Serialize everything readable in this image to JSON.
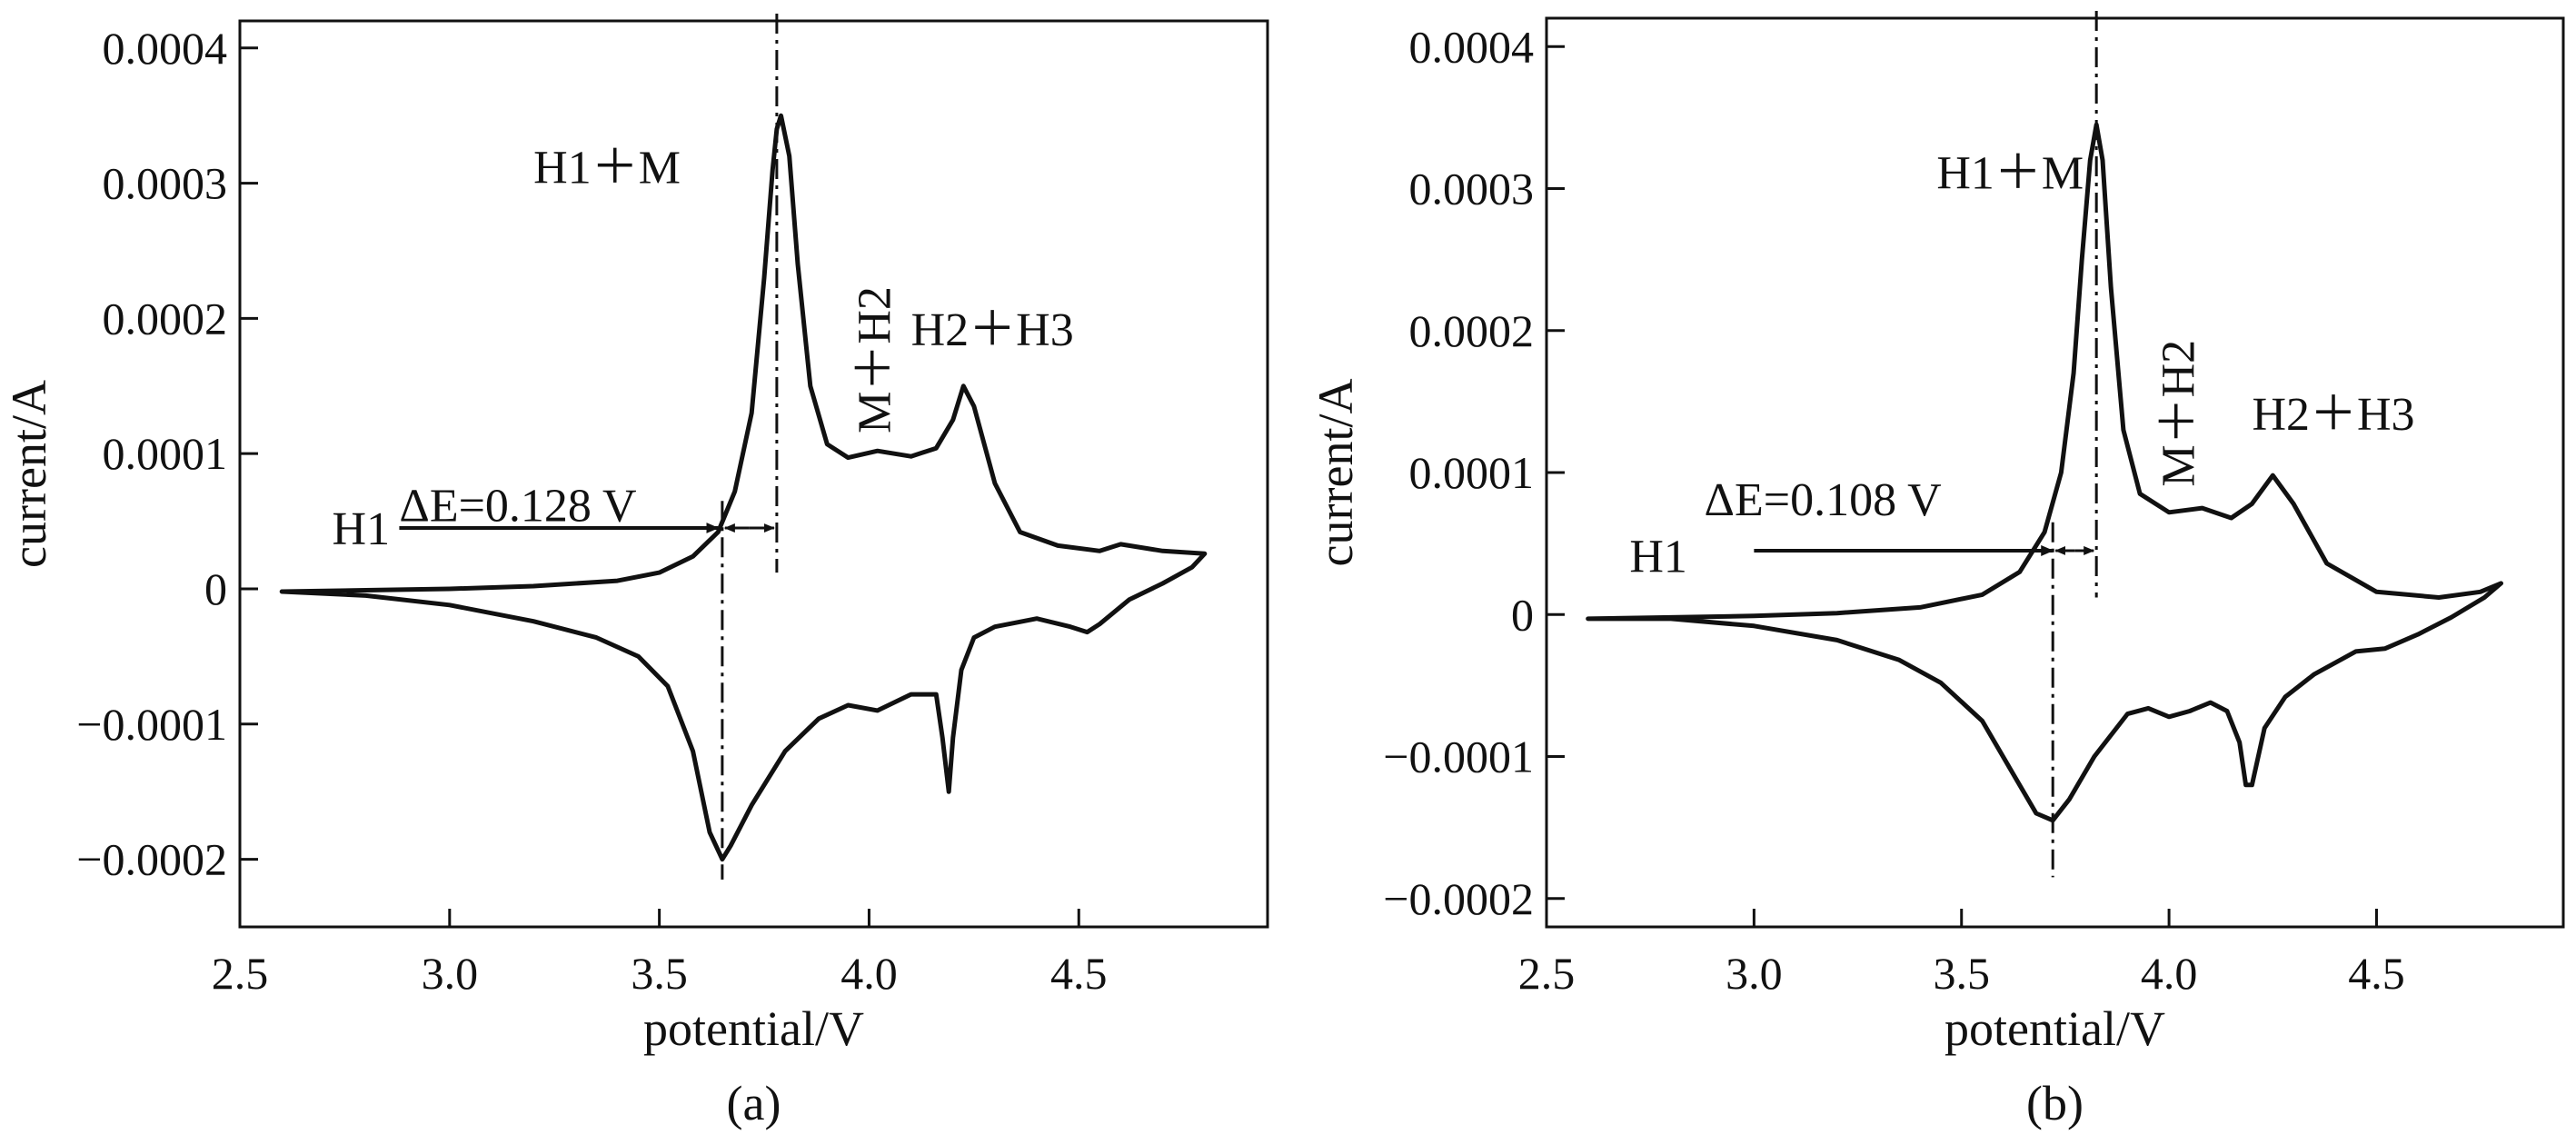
{
  "chart_data": [
    {
      "type": "line",
      "panel_label": "(a)",
      "xlabel": "potential/V",
      "ylabel": "current/A",
      "xlim": [
        2.5,
        4.95
      ],
      "ylim": [
        -0.00025,
        0.00042
      ],
      "x_ticks": [
        {
          "value": 2.5,
          "label": "2.5"
        },
        {
          "value": 3.0,
          "label": "3.0"
        },
        {
          "value": 3.5,
          "label": "3.5"
        },
        {
          "value": 4.0,
          "label": "4.0"
        },
        {
          "value": 4.5,
          "label": "4.5"
        }
      ],
      "y_ticks": [
        {
          "value": 0.0004,
          "label": "0.0004"
        },
        {
          "value": 0.0003,
          "label": "0.0003"
        },
        {
          "value": 0.0002,
          "label": "0.0002"
        },
        {
          "value": 0.0001,
          "label": "0.0001"
        },
        {
          "value": 0,
          "label": "0"
        },
        {
          "value": -0.0001,
          "label": "−0.0001"
        },
        {
          "value": -0.0002,
          "label": "−0.0002"
        }
      ],
      "grid": false,
      "series": [
        {
          "values": [
            [
              2.6,
              -2e-06
            ],
            [
              2.8,
              -1e-06
            ],
            [
              3.0,
              0.0
            ],
            [
              3.2,
              2e-06
            ],
            [
              3.4,
              6e-06
            ],
            [
              3.5,
              1.2e-05
            ],
            [
              3.58,
              2.4e-05
            ],
            [
              3.64,
              4.2e-05
            ],
            [
              3.68,
              7.2e-05
            ],
            [
              3.72,
              0.00013
            ],
            [
              3.75,
              0.00023
            ],
            [
              3.77,
              0.00031
            ],
            [
              3.78,
              0.00034
            ],
            [
              3.79,
              0.00035
            ],
            [
              3.81,
              0.00032
            ],
            [
              3.83,
              0.00024
            ],
            [
              3.86,
              0.00015
            ],
            [
              3.9,
              0.000107
            ],
            [
              3.95,
              9.7e-05
            ],
            [
              4.02,
              0.000102
            ],
            [
              4.1,
              9.8e-05
            ],
            [
              4.16,
              0.000104
            ],
            [
              4.2,
              0.000125
            ],
            [
              4.225,
              0.00015
            ],
            [
              4.25,
              0.000135
            ],
            [
              4.3,
              7.8e-05
            ],
            [
              4.36,
              4.2e-05
            ],
            [
              4.45,
              3.2e-05
            ],
            [
              4.55,
              2.8e-05
            ],
            [
              4.6,
              3.3e-05
            ],
            [
              4.7,
              2.8e-05
            ],
            [
              4.8,
              2.6e-05
            ],
            [
              4.77,
              1.6e-05
            ],
            [
              4.7,
              4e-06
            ],
            [
              4.62,
              -8e-06
            ],
            [
              4.55,
              -2.6e-05
            ],
            [
              4.52,
              -3.2e-05
            ],
            [
              4.48,
              -2.8e-05
            ],
            [
              4.4,
              -2.2e-05
            ],
            [
              4.3,
              -2.8e-05
            ],
            [
              4.25,
              -3.6e-05
            ],
            [
              4.22,
              -6e-05
            ],
            [
              4.2,
              -0.00011
            ],
            [
              4.19,
              -0.00015
            ],
            [
              4.175,
              -0.00011
            ],
            [
              4.16,
              -7.8e-05
            ],
            [
              4.1,
              -7.8e-05
            ],
            [
              4.02,
              -9e-05
            ],
            [
              3.95,
              -8.6e-05
            ],
            [
              3.88,
              -9.6e-05
            ],
            [
              3.8,
              -0.00012
            ],
            [
              3.72,
              -0.00016
            ],
            [
              3.67,
              -0.00019
            ],
            [
              3.65,
              -0.0002
            ],
            [
              3.62,
              -0.00018
            ],
            [
              3.58,
              -0.00012
            ],
            [
              3.52,
              -7.2e-05
            ],
            [
              3.45,
              -5e-05
            ],
            [
              3.35,
              -3.6e-05
            ],
            [
              3.2,
              -2.4e-05
            ],
            [
              3.0,
              -1.2e-05
            ],
            [
              2.8,
              -5e-06
            ],
            [
              2.6,
              -2e-06
            ]
          ]
        }
      ],
      "annotations": [
        {
          "text": "H1",
          "x": 2.72,
          "y": 3.3e-05
        },
        {
          "text": "H1＋M",
          "x": 3.2,
          "y": 0.0003
        },
        {
          "text": "M＋H2",
          "x": 4.05,
          "y": 0.000115,
          "rotation": -90
        },
        {
          "text": "H2＋H3",
          "x": 4.1,
          "y": 0.00018
        },
        {
          "text": "ΔE=0.128 V",
          "x": 2.88,
          "y": 5e-05
        }
      ],
      "delta_e": {
        "label": "ΔE=0.128 V",
        "value": 0.128,
        "arrow_from_x": 2.88,
        "arrow_to_x": 3.64,
        "arrow_y": 4.5e-05,
        "oxidation_onset": 3.64,
        "oxidation_peak": 3.78,
        "reduction_peak": 3.65
      }
    },
    {
      "type": "line",
      "panel_label": "(b)",
      "xlabel": "potential/V",
      "ylabel": "current/A",
      "xlim": [
        2.5,
        4.95
      ],
      "ylim": [
        -0.00022,
        0.00042
      ],
      "x_ticks": [
        {
          "value": 2.5,
          "label": "2.5"
        },
        {
          "value": 3.0,
          "label": "3.0"
        },
        {
          "value": 3.5,
          "label": "3.5"
        },
        {
          "value": 4.0,
          "label": "4.0"
        },
        {
          "value": 4.5,
          "label": "4.5"
        }
      ],
      "y_ticks": [
        {
          "value": 0.0004,
          "label": "0.0004"
        },
        {
          "value": 0.0003,
          "label": "0.0003"
        },
        {
          "value": 0.0002,
          "label": "0.0002"
        },
        {
          "value": 0.0001,
          "label": "0.0001"
        },
        {
          "value": 0,
          "label": "0"
        },
        {
          "value": -0.0001,
          "label": "−0.0001"
        },
        {
          "value": -0.0002,
          "label": "−0.0002"
        }
      ],
      "grid": false,
      "series": [
        {
          "values": [
            [
              2.6,
              -3e-06
            ],
            [
              2.8,
              -2e-06
            ],
            [
              3.0,
              -1e-06
            ],
            [
              3.2,
              1e-06
            ],
            [
              3.4,
              5e-06
            ],
            [
              3.55,
              1.4e-05
            ],
            [
              3.64,
              3e-05
            ],
            [
              3.7,
              5.8e-05
            ],
            [
              3.74,
              0.0001
            ],
            [
              3.77,
              0.00017
            ],
            [
              3.79,
              0.00025
            ],
            [
              3.81,
              0.00032
            ],
            [
              3.825,
              0.000345
            ],
            [
              3.84,
              0.00032
            ],
            [
              3.86,
              0.00023
            ],
            [
              3.89,
              0.00013
            ],
            [
              3.93,
              8.5e-05
            ],
            [
              4.0,
              7.2e-05
            ],
            [
              4.08,
              7.5e-05
            ],
            [
              4.15,
              6.8e-05
            ],
            [
              4.2,
              7.8e-05
            ],
            [
              4.25,
              9.8e-05
            ],
            [
              4.3,
              7.8e-05
            ],
            [
              4.38,
              3.6e-05
            ],
            [
              4.5,
              1.6e-05
            ],
            [
              4.65,
              1.2e-05
            ],
            [
              4.75,
              1.6e-05
            ],
            [
              4.8,
              2.2e-05
            ],
            [
              4.76,
              1.2e-05
            ],
            [
              4.68,
              -2e-06
            ],
            [
              4.6,
              -1.4e-05
            ],
            [
              4.52,
              -2.4e-05
            ],
            [
              4.45,
              -2.6e-05
            ],
            [
              4.35,
              -4.2e-05
            ],
            [
              4.28,
              -5.8e-05
            ],
            [
              4.23,
              -8e-05
            ],
            [
              4.2,
              -0.00012
            ],
            [
              4.185,
              -0.00012
            ],
            [
              4.17,
              -9e-05
            ],
            [
              4.14,
              -6.8e-05
            ],
            [
              4.1,
              -6.2e-05
            ],
            [
              4.05,
              -6.8e-05
            ],
            [
              4.0,
              -7.2e-05
            ],
            [
              3.95,
              -6.6e-05
            ],
            [
              3.9,
              -7e-05
            ],
            [
              3.82,
              -0.0001
            ],
            [
              3.76,
              -0.00013
            ],
            [
              3.72,
              -0.000145
            ],
            [
              3.68,
              -0.00014
            ],
            [
              3.62,
              -0.00011
            ],
            [
              3.55,
              -7.5e-05
            ],
            [
              3.45,
              -4.8e-05
            ],
            [
              3.35,
              -3.2e-05
            ],
            [
              3.2,
              -1.8e-05
            ],
            [
              3.0,
              -8e-06
            ],
            [
              2.8,
              -3e-06
            ],
            [
              2.6,
              -3e-06
            ]
          ]
        }
      ],
      "annotations": [
        {
          "text": "H1",
          "x": 2.7,
          "y": 3e-05
        },
        {
          "text": "H1＋M",
          "x": 3.44,
          "y": 0.0003
        },
        {
          "text": "M＋H2",
          "x": 4.06,
          "y": 9e-05,
          "rotation": -90
        },
        {
          "text": "H2＋H3",
          "x": 4.2,
          "y": 0.00013
        },
        {
          "text": "ΔE=0.108 V",
          "x": 2.88,
          "y": 7e-05
        }
      ],
      "delta_e": {
        "label": "ΔE=0.108 V",
        "value": 0.108,
        "arrow_from_x": 3.0,
        "arrow_to_x": 3.72,
        "arrow_y": 4.5e-05,
        "oxidation_onset": 3.72,
        "oxidation_peak": 3.825,
        "reduction_peak": 3.72
      }
    }
  ]
}
